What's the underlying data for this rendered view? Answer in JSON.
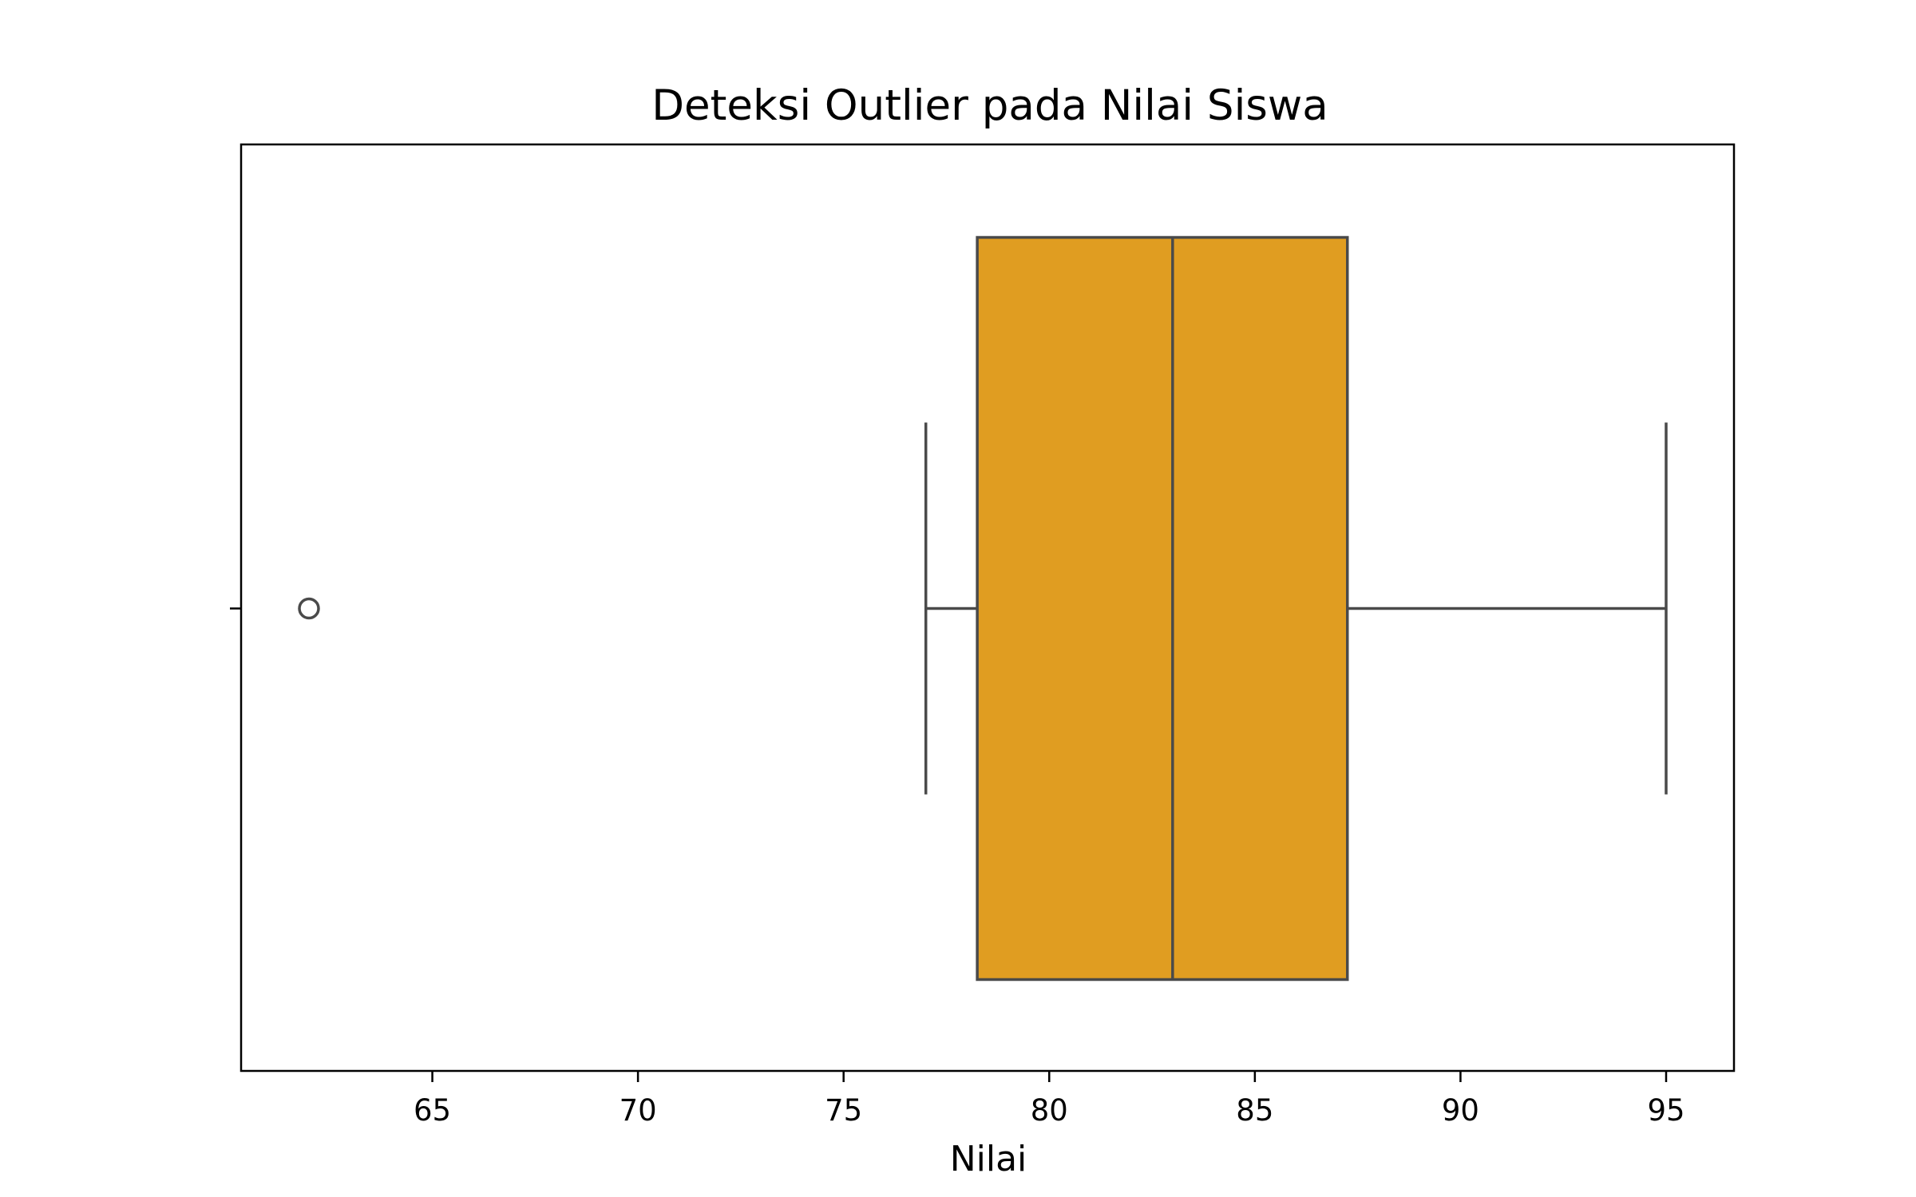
{
  "chart_data": {
    "type": "boxplot",
    "orientation": "horizontal",
    "title": "Deteksi Outlier pada Nilai Siswa",
    "xlabel": "Nilai",
    "ylabel": "",
    "xlim": [
      60.35,
      96.65
    ],
    "xticks": [
      65,
      70,
      75,
      80,
      85,
      90,
      95
    ],
    "grid": false,
    "box": {
      "whisker_low": 77,
      "q1": 78.25,
      "median": 83,
      "q3": 87.25,
      "whisker_high": 95,
      "outliers": [
        62
      ]
    },
    "colors": {
      "box_fill": "#E09D21",
      "line": "#4A4A4A",
      "axes": "#000000",
      "background": "#FFFFFF"
    }
  }
}
